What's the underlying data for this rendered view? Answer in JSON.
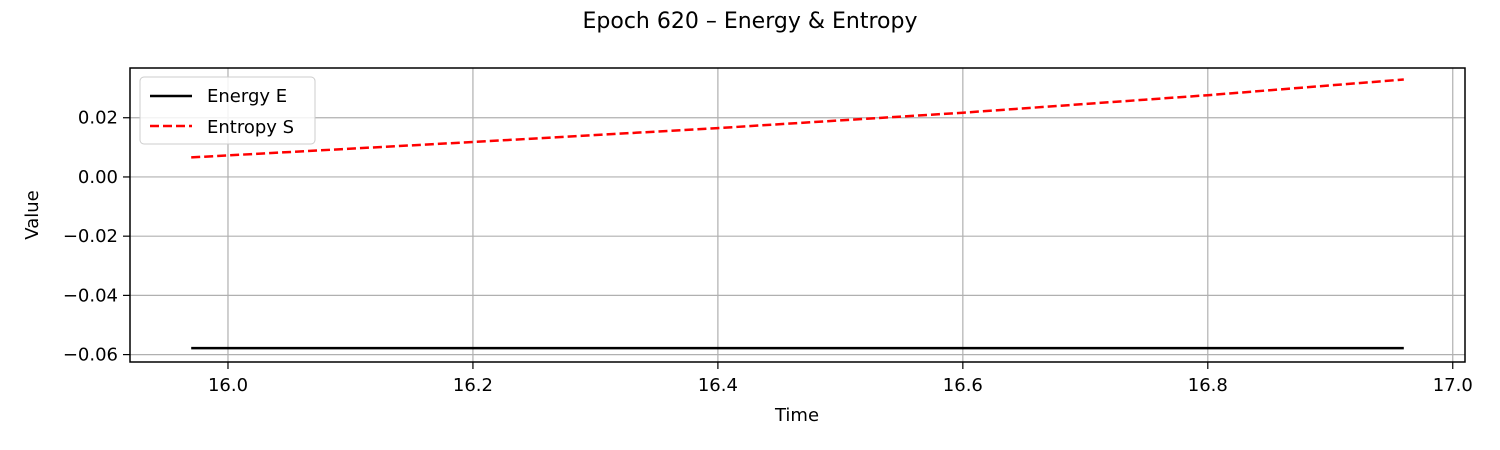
{
  "chart_data": {
    "type": "line",
    "title": "Epoch 620 – Energy & Entropy",
    "xlabel": "Time",
    "ylabel": "Value",
    "xlim": [
      15.92,
      17.01
    ],
    "ylim": [
      -0.0625,
      0.0368
    ],
    "xticks": [
      16.0,
      16.2,
      16.4,
      16.6,
      16.8,
      17.0
    ],
    "xtick_labels": [
      "16.0",
      "16.2",
      "16.4",
      "16.6",
      "16.8",
      "17.0"
    ],
    "yticks": [
      0.02,
      0.0,
      -0.02,
      -0.04,
      -0.06
    ],
    "ytick_labels": [
      "0.02",
      "0.00",
      "−0.02",
      "−0.04",
      "−0.06"
    ],
    "grid": true,
    "legend_position": "upper-left",
    "series": [
      {
        "name": "Energy E",
        "color": "#000000",
        "style": "solid",
        "x": [
          15.97,
          16.2,
          16.4,
          16.6,
          16.8,
          16.96
        ],
        "values": [
          -0.0578,
          -0.0578,
          -0.0578,
          -0.0578,
          -0.0578,
          -0.0578
        ]
      },
      {
        "name": "Entropy S",
        "color": "#ff0000",
        "style": "dashed",
        "x": [
          15.97,
          16.2,
          16.4,
          16.6,
          16.8,
          16.96
        ],
        "values": [
          0.0066,
          0.0118,
          0.0165,
          0.0217,
          0.0276,
          0.0329
        ]
      }
    ]
  }
}
